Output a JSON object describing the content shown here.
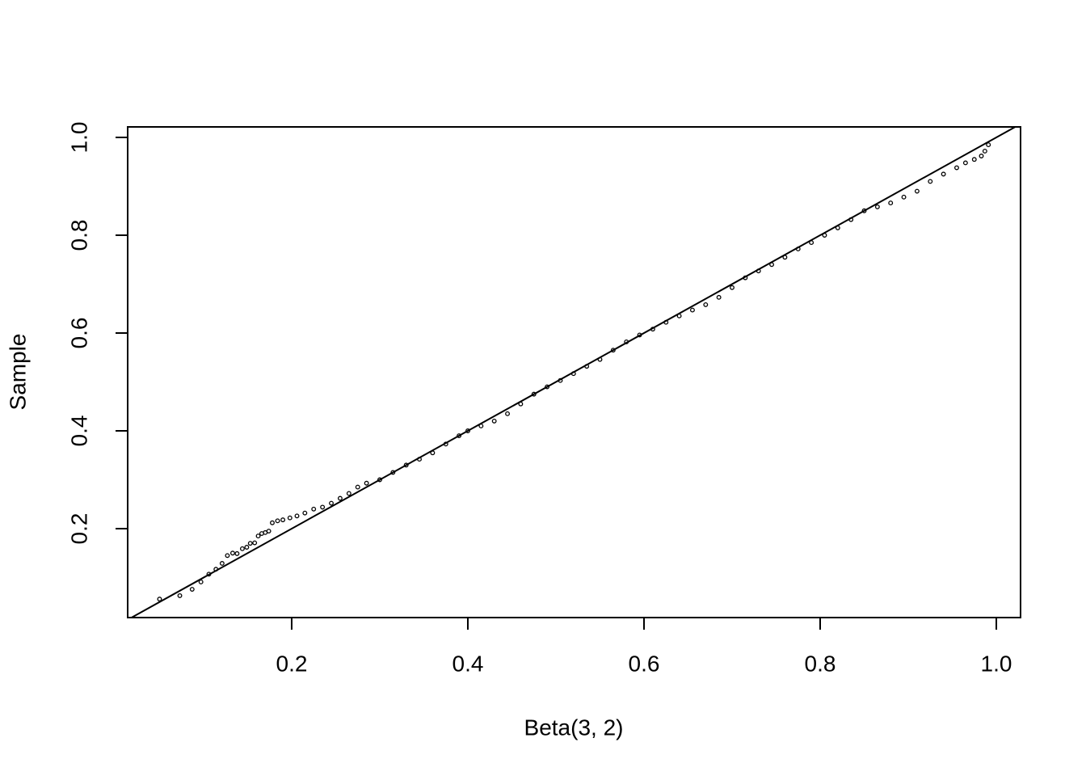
{
  "chart_data": {
    "type": "scatter",
    "x_label": "Beta(3, 2)",
    "y_label": "Sample",
    "xlim": [
      0.0138,
      1.0275
    ],
    "ylim": [
      0.0182,
      1.0215
    ],
    "xticks": [
      0.2,
      0.4,
      0.6,
      0.8,
      {
        "value": 1,
        "label": "1.0"
      }
    ],
    "yticks": [
      0.2,
      0.4,
      0.6,
      0.8,
      {
        "value": 1,
        "label": "1.0"
      }
    ],
    "color": "#000000",
    "reference_line": {
      "slope": 1,
      "intercept": 0
    },
    "x": [
      0.05,
      0.073,
      0.087,
      0.097,
      0.106,
      0.114,
      0.121,
      0.127,
      0.133,
      0.138,
      0.144,
      0.149,
      0.153,
      0.158,
      0.162,
      0.166,
      0.17,
      0.174,
      0.178,
      0.184,
      0.19,
      0.198,
      0.206,
      0.215,
      0.225,
      0.235,
      0.245,
      0.255,
      0.265,
      0.275,
      0.285,
      0.3,
      0.315,
      0.33,
      0.345,
      0.36,
      0.375,
      0.39,
      0.4,
      0.415,
      0.43,
      0.445,
      0.46,
      0.475,
      0.49,
      0.505,
      0.52,
      0.535,
      0.55,
      0.565,
      0.58,
      0.595,
      0.61,
      0.625,
      0.64,
      0.655,
      0.67,
      0.685,
      0.7,
      0.715,
      0.73,
      0.745,
      0.76,
      0.775,
      0.79,
      0.805,
      0.82,
      0.835,
      0.85,
      0.865,
      0.88,
      0.895,
      0.91,
      0.925,
      0.94,
      0.955,
      0.965,
      0.975,
      0.983,
      0.987,
      0.991
    ],
    "values": [
      0.056,
      0.063,
      0.076,
      0.091,
      0.107,
      0.117,
      0.129,
      0.145,
      0.15,
      0.149,
      0.159,
      0.162,
      0.17,
      0.171,
      0.185,
      0.19,
      0.192,
      0.195,
      0.212,
      0.216,
      0.218,
      0.222,
      0.226,
      0.232,
      0.24,
      0.244,
      0.252,
      0.262,
      0.272,
      0.285,
      0.293,
      0.3,
      0.315,
      0.33,
      0.342,
      0.355,
      0.373,
      0.39,
      0.4,
      0.41,
      0.42,
      0.435,
      0.455,
      0.475,
      0.49,
      0.503,
      0.517,
      0.532,
      0.546,
      0.565,
      0.582,
      0.596,
      0.608,
      0.622,
      0.635,
      0.647,
      0.658,
      0.673,
      0.693,
      0.713,
      0.727,
      0.74,
      0.755,
      0.772,
      0.785,
      0.8,
      0.815,
      0.832,
      0.85,
      0.858,
      0.866,
      0.878,
      0.89,
      0.91,
      0.925,
      0.938,
      0.948,
      0.955,
      0.962,
      0.972,
      0.985
    ]
  }
}
